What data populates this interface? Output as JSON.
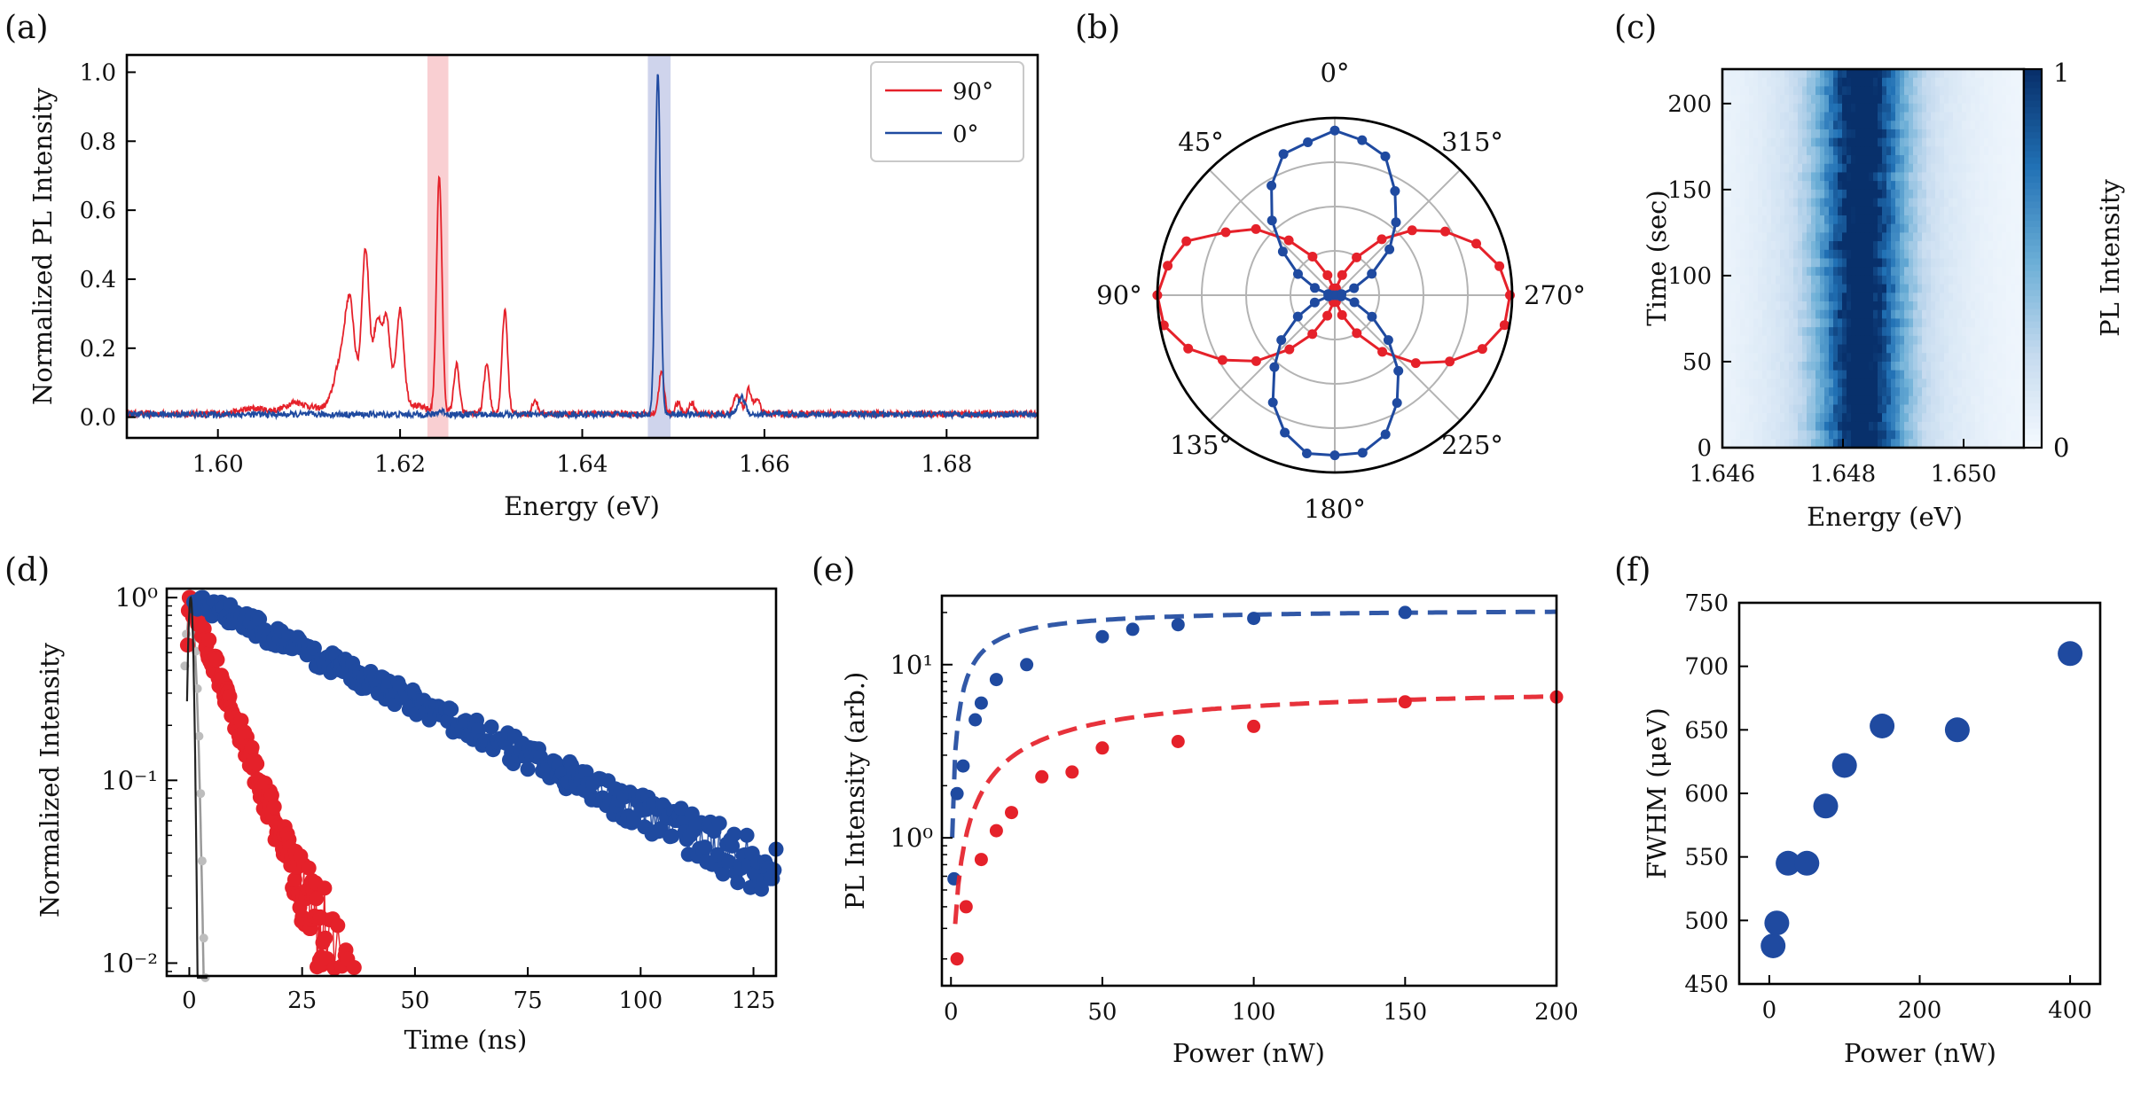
{
  "colors": {
    "red": "#e5212a",
    "blue": "#1f4aa0",
    "red_band": "#f9cfd2",
    "blue_band": "#cfd4ec",
    "fit_black": "#222222"
  },
  "chart_data": [
    {
      "panel": "(a)",
      "type": "line",
      "xlabel": "Energy (eV)",
      "ylabel": "Normalized PL Intensity",
      "xlim": [
        1.59,
        1.69
      ],
      "ylim": [
        -0.06,
        1.05
      ],
      "xticks": [
        "1.60",
        "1.62",
        "1.64",
        "1.66",
        "1.68"
      ],
      "yticks": [
        "0.0",
        "0.2",
        "0.4",
        "0.6",
        "0.8",
        "1.0"
      ],
      "legend": {
        "position": "top-right",
        "entries": [
          "90°",
          "0°"
        ]
      },
      "highlight_bands": [
        {
          "color": "red",
          "range": [
            1.623,
            1.6253
          ]
        },
        {
          "color": "blue",
          "range": [
            1.6472,
            1.6497
          ]
        }
      ],
      "series": [
        {
          "name": "90°",
          "color": "red",
          "baseline": 0.01,
          "peaks": [
            [
              1.6135,
              0.12,
              0.0007
            ],
            [
              1.6145,
              0.25,
              0.0005
            ],
            [
              1.6162,
              0.42,
              0.0004
            ],
            [
              1.6175,
              0.21,
              0.0004
            ],
            [
              1.6185,
              0.22,
              0.0004
            ],
            [
              1.62,
              0.26,
              0.0004
            ],
            [
              1.6243,
              0.68,
              0.0003
            ],
            [
              1.6262,
              0.14,
              0.0003
            ],
            [
              1.6295,
              0.14,
              0.0003
            ],
            [
              1.6315,
              0.3,
              0.0003
            ],
            [
              1.6348,
              0.04,
              0.0003
            ],
            [
              1.6487,
              0.12,
              0.0003
            ],
            [
              1.6505,
              0.03,
              0.0003
            ],
            [
              1.652,
              0.03,
              0.0003
            ],
            [
              1.657,
              0.05,
              0.0004
            ],
            [
              1.6583,
              0.07,
              0.0003
            ],
            [
              1.6592,
              0.04,
              0.0003
            ],
            [
              1.6085,
              0.03,
              0.0012
            ],
            [
              1.604,
              0.015,
              0.0015
            ]
          ],
          "broad_hump": [
            1.617,
            0.06,
            0.0035
          ]
        },
        {
          "name": "0°",
          "color": "blue",
          "baseline": 0.008,
          "peaks": [
            [
              1.6483,
              0.99,
              0.00028
            ],
            [
              1.6575,
              0.05,
              0.0004
            ],
            [
              1.6245,
              0.01,
              0.0004
            ]
          ]
        }
      ]
    },
    {
      "panel": "(b)",
      "type": "polar",
      "angle_labels": [
        "0°",
        "45°",
        "90°",
        "135°",
        "180°",
        "225°",
        "270°",
        "315°"
      ],
      "rticks": [
        0.25,
        0.5,
        0.75
      ],
      "series": [
        {
          "name": "90°",
          "color": "red",
          "model": "sin2",
          "amplitude": 1.0,
          "step_deg": 10
        },
        {
          "name": "0°",
          "color": "blue",
          "model": "cos2",
          "amplitude": 0.95,
          "step_deg": 10
        }
      ]
    },
    {
      "panel": "(c)",
      "type": "heatmap",
      "xlabel": "Energy (eV)",
      "ylabel": "Time (sec)",
      "colorbar_label": "PL Intensity",
      "xlim": [
        1.646,
        1.651
      ],
      "ylim": [
        0,
        220
      ],
      "xticks": [
        "1.646",
        "1.648",
        "1.650"
      ],
      "yticks": [
        "0",
        "50",
        "100",
        "150",
        "200"
      ],
      "colorbar_ticks": [
        "0",
        "1"
      ],
      "line_center": 1.6483,
      "line_width": 0.00045,
      "wing_width": 0.0011
    },
    {
      "panel": "(d)",
      "type": "scatter",
      "scale": "log",
      "xlabel": "Time (ns)",
      "ylabel": "Normalized Intensity",
      "xlim": [
        -5,
        130
      ],
      "ylim": [
        0.0085,
        1.12
      ],
      "xticks": [
        "0",
        "25",
        "50",
        "75",
        "100",
        "125"
      ],
      "yticks": [
        "10⁰",
        "10⁻¹",
        "10⁻²"
      ],
      "series": [
        {
          "name": "blue decay",
          "color": "blue",
          "tau_ns": 37,
          "t_start": 1,
          "t_end": 130,
          "n_points": 320,
          "noise_floor": 0.027
        },
        {
          "name": "red decay",
          "color": "red",
          "tau_ns": 6.7,
          "t_start": 0,
          "t_end": 40,
          "n_points": 220,
          "noise_floor": 0.0
        },
        {
          "name": "IRF",
          "color": "fit_black",
          "tau_ns": 0.7,
          "t_start": -0.5,
          "t_end": 4
        }
      ]
    },
    {
      "panel": "(e)",
      "type": "scatter",
      "scale": "log",
      "xlabel": "Power (nW)",
      "ylabel": "PL Intensity (arb.)",
      "xlim": [
        -3,
        200
      ],
      "ylim": [
        0.14,
        25
      ],
      "xticks": [
        "0",
        "50",
        "100",
        "150",
        "200"
      ],
      "yticks": [
        "10⁰",
        "10¹"
      ],
      "series": [
        {
          "name": "blue",
          "color": "blue",
          "saturation": 21,
          "p_sat": 8,
          "x": [
            1,
            2,
            4,
            8,
            10,
            15,
            25,
            50,
            60,
            75,
            100,
            150
          ],
          "y": [
            0.58,
            1.8,
            2.6,
            4.8,
            6.0,
            8.2,
            10.0,
            14.5,
            16.0,
            17.0,
            18.5,
            20.0
          ]
        },
        {
          "name": "red",
          "color": "red",
          "saturation": 7.6,
          "p_sat": 32,
          "x": [
            2,
            5,
            10,
            15,
            20,
            30,
            40,
            50,
            75,
            100,
            150,
            200
          ],
          "y": [
            0.2,
            0.4,
            0.75,
            1.1,
            1.4,
            2.25,
            2.4,
            3.3,
            3.6,
            4.4,
            6.1,
            6.5
          ]
        }
      ]
    },
    {
      "panel": "(f)",
      "type": "scatter",
      "xlabel": "Power (nW)",
      "ylabel": "FWHM (μeV)",
      "xlim": [
        -40,
        440
      ],
      "ylim": [
        450,
        750
      ],
      "xticks": [
        "0",
        "200",
        "400"
      ],
      "yticks": [
        "450",
        "500",
        "550",
        "600",
        "650",
        "700",
        "750"
      ],
      "series": [
        {
          "name": "FWHM",
          "color": "blue",
          "x": [
            5,
            10,
            25,
            50,
            75,
            100,
            150,
            250,
            400
          ],
          "y": [
            480,
            498,
            545,
            545,
            590,
            622,
            653,
            650,
            710
          ]
        }
      ]
    }
  ]
}
